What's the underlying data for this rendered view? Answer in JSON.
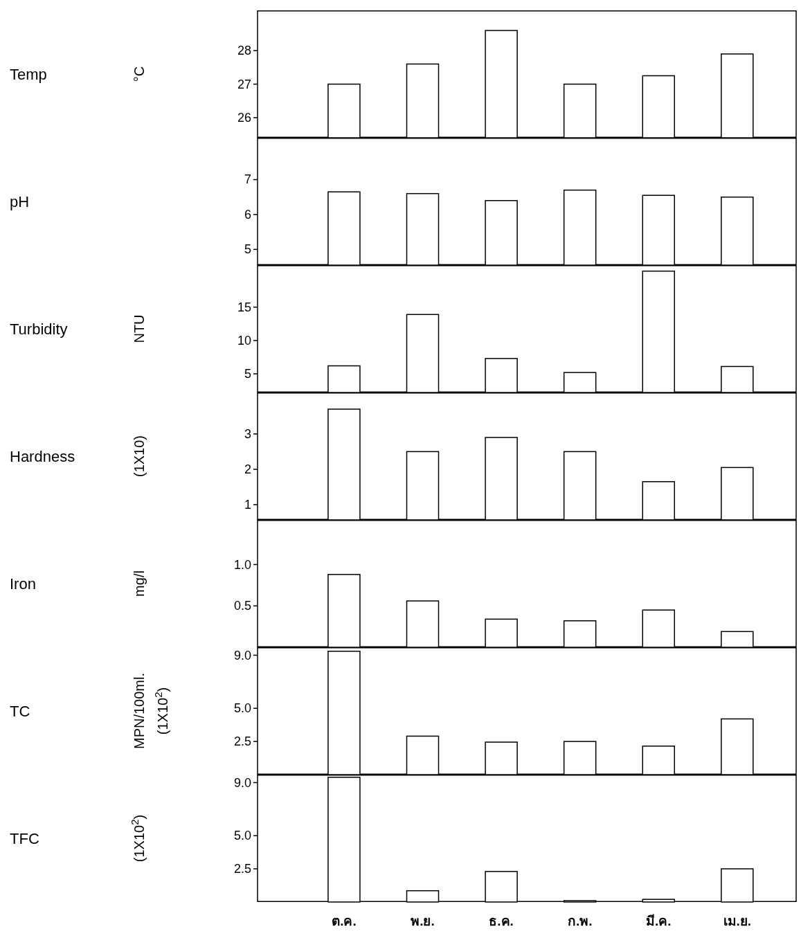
{
  "chart_data": [
    {
      "type": "bar",
      "ylabel": "Temp",
      "annotations": [
        "°C"
      ],
      "categories": [
        null,
        null,
        null,
        null,
        null,
        null
      ],
      "values": [
        27.0,
        27.6,
        28.6,
        27.0,
        27.25,
        27.9
      ],
      "color": "#ffffff",
      "ylim": [
        25.4,
        29.2
      ],
      "yticks": [
        26,
        27,
        28
      ],
      "tick_labels": "y"
    },
    {
      "type": "bar",
      "ylabel": "pH",
      "categories": [
        null,
        null,
        null,
        null,
        null,
        null
      ],
      "values": [
        6.65,
        6.6,
        6.4,
        6.7,
        6.55,
        6.5
      ],
      "color": "#ffffff",
      "ylim": [
        4.55,
        8.2
      ],
      "yticks": [
        5,
        6,
        7
      ],
      "tick_labels": "y"
    },
    {
      "type": "bar",
      "ylabel": "Turbidity",
      "annotations": [
        "NTU"
      ],
      "categories": [
        null,
        null,
        null,
        null,
        null,
        null
      ],
      "values": [
        6.2,
        13.9,
        7.3,
        5.2,
        20.4,
        6.1
      ],
      "color": "#ffffff",
      "ylim": [
        2.2,
        21.3
      ],
      "yticks": [
        5,
        10,
        15
      ],
      "tick_labels": "y"
    },
    {
      "type": "bar",
      "ylabel": "Hardness",
      "annotations": [
        "(1X10)"
      ],
      "categories": [
        null,
        null,
        null,
        null,
        null,
        null
      ],
      "values": [
        3.7,
        2.5,
        2.9,
        2.5,
        1.65,
        2.05
      ],
      "color": "#ffffff",
      "ylim": [
        0.57,
        4.17
      ],
      "yticks": [
        1,
        2,
        3
      ],
      "tick_labels": "y"
    },
    {
      "type": "bar",
      "ylabel": "Iron",
      "annotations": [
        "mg/l"
      ],
      "categories": [
        null,
        null,
        null,
        null,
        null,
        null
      ],
      "values": [
        0.88,
        0.56,
        0.34,
        0.32,
        0.45,
        0.19
      ],
      "color": "#ffffff",
      "ylim": [
        0,
        1.54
      ],
      "yticks": [
        {
          "value": 0.5,
          "label": "0.5"
        },
        {
          "value": 1,
          "label": "1.0"
        }
      ],
      "tick_labels": "y"
    },
    {
      "type": "bar",
      "ylabel": "TC",
      "annotations": [
        "MPN/100ml.",
        "(1X10$^{2}$)"
      ],
      "categories": [
        null,
        null,
        null,
        null,
        null,
        null
      ],
      "values": [
        9.3,
        2.9,
        2.45,
        2.5,
        2.15,
        4.2
      ],
      "color": "#ffffff",
      "ylim": [
        0,
        9.6
      ],
      "yticks": [
        2.5,
        {
          "value": 5,
          "label": "5.0"
        },
        {
          "value": 9,
          "label": "9.0"
        }
      ],
      "tick_labels": "y"
    },
    {
      "type": "bar",
      "ylabel": "TFC",
      "annotations": [
        "(1X10$^{2}$)"
      ],
      "categories": [
        "ต.ค.",
        "พ.ย.",
        "ธ.ค.",
        "ก.พ.",
        "มี.ค.",
        "เม.ย."
      ],
      "values": [
        9.4,
        0.85,
        2.3,
        0.1,
        0.2,
        2.5
      ],
      "color": "#ffffff",
      "ylim": [
        0,
        9.6
      ],
      "yticks": [
        2.5,
        {
          "value": 5,
          "label": "5.0"
        },
        {
          "value": 9,
          "label": "9.0"
        }
      ]
    }
  ]
}
